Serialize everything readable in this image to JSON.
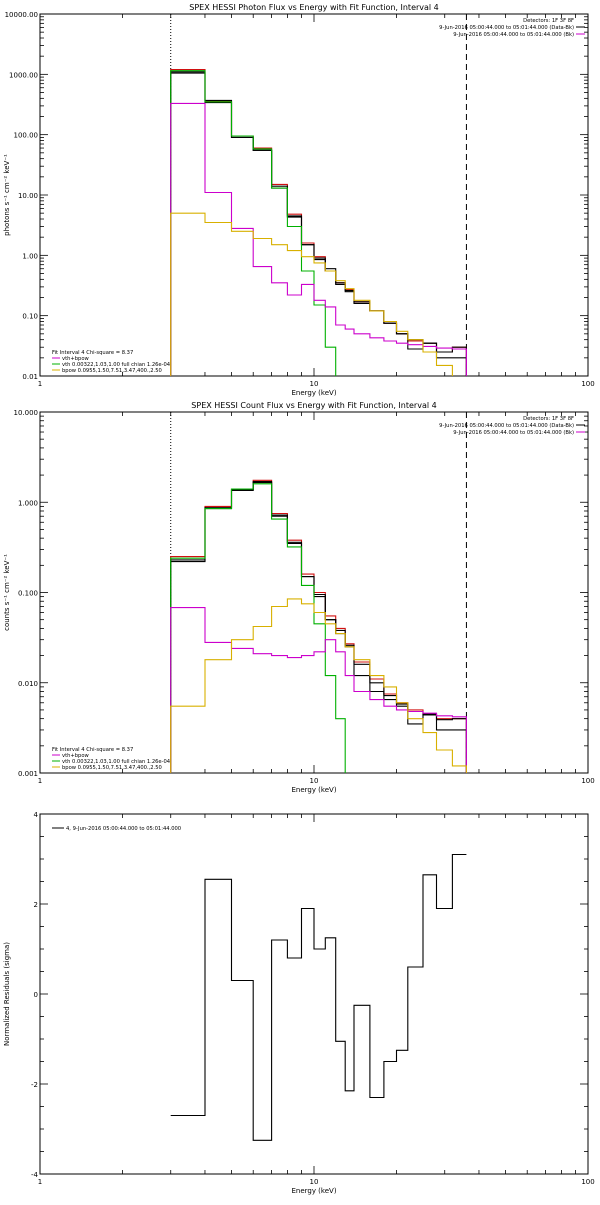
{
  "colors": {
    "data": "#000000",
    "bkg": "#d01010",
    "model": "#00b000",
    "vth": "#00b000",
    "bpow": "#d8b000",
    "vthbpow": "#cc00cc"
  },
  "chart_data": [
    {
      "type": "line",
      "title": "SPEX HESSI Photon Flux vs Energy with Fit Function, Interval 4",
      "xlabel": "Energy (keV)",
      "ylabel": "photons s⁻¹ cm⁻² keV⁻¹",
      "xscale": "log",
      "yscale": "log",
      "xlim": [
        1,
        100
      ],
      "ylim": [
        0.01,
        10000
      ],
      "x_ticks": [
        "1",
        "10",
        "100"
      ],
      "y_ticks": [
        "0.01",
        "0.10",
        "1.00",
        "10.00",
        "100.00",
        "1000.00",
        "10000.00"
      ],
      "vlines": [
        {
          "x": 3.0,
          "style": "dotted"
        },
        {
          "x": 36.0,
          "style": "dashed"
        }
      ],
      "header": [
        "Detectors: 1F 3F 8F",
        "9-Jun-2016 05:00:44.000 to 05:01:44.000 (Data-Bk)",
        "9-Jun-2016 05:00:44.000 to 05:01:44.000 (Bk)"
      ],
      "legend": [
        "Fit Interval  4   Chi-square = 8.37",
        "vth+bpow",
        "vth 0.00322,1.03,1.00  full chian 1.26e-04",
        "bpow 0.0955,1.50,7.51,3.47,400.,2.50"
      ],
      "edges": [
        3.0,
        4.0,
        5.0,
        6.0,
        7.0,
        8.0,
        9.0,
        10.0,
        11.0,
        12.0,
        13.0,
        14.0,
        16.0,
        18.0,
        20.0,
        22.0,
        25.0,
        28.0,
        32.0,
        36.0
      ],
      "series": [
        {
          "key": "data",
          "values": [
            1100,
            370,
            90,
            55,
            14,
            4.5,
            1.5,
            0.9,
            0.6,
            0.35,
            0.25,
            0.17,
            0.12,
            0.075,
            0.05,
            0.028,
            0.035,
            0.02,
            0.02
          ]
        },
        {
          "key": "model",
          "values": [
            1200,
            360,
            95,
            60,
            15,
            4.8,
            1.6,
            0.95,
            0.55,
            0.35,
            0.27,
            0.17,
            0.12,
            0.075,
            0.05,
            0.038,
            0.035,
            0.025,
            0.03
          ]
        },
        {
          "key": "vthbpow",
          "values": [
            1050,
            340,
            90,
            55,
            13,
            4.3,
            1.5,
            0.85,
            0.55,
            0.33,
            0.26,
            0.16,
            0.12,
            0.075,
            0.05,
            0.04,
            0.035,
            0.025,
            0.03
          ]
        },
        {
          "key": "vth",
          "values": [
            1150,
            350,
            95,
            58,
            13,
            3.0,
            0.55,
            0.15,
            0.03,
            0.006
          ]
        },
        {
          "key": "vthbpow_alt",
          "values": [
            330,
            11,
            2.8,
            0.65,
            0.35,
            0.22,
            0.33,
            0.18,
            0.14,
            0.07,
            0.06,
            0.05,
            0.043,
            0.038,
            0.035,
            0.033,
            0.031,
            0.029,
            0.028
          ]
        },
        {
          "key": "bpow",
          "values": [
            5,
            3.5,
            2.5,
            1.9,
            1.5,
            1.2,
            0.95,
            0.75,
            0.55,
            0.38,
            0.28,
            0.18,
            0.12,
            0.08,
            0.055,
            0.04,
            0.025,
            0.015,
            0.009
          ]
        }
      ]
    },
    {
      "type": "line",
      "title": "SPEX HESSI Count Flux vs Energy with Fit Function, Interval 4",
      "xlabel": "Energy (keV)",
      "ylabel": "counts s⁻¹ cm⁻² keV⁻¹",
      "xscale": "log",
      "yscale": "log",
      "xlim": [
        1,
        100
      ],
      "ylim": [
        0.001,
        10
      ],
      "x_ticks": [
        "1",
        "10",
        "100"
      ],
      "y_ticks": [
        "0.001",
        "0.010",
        "0.100",
        "1.000",
        "10.000"
      ],
      "vlines": [
        {
          "x": 3.0,
          "style": "dotted"
        },
        {
          "x": 36.0,
          "style": "dashed"
        }
      ],
      "header": [
        "Detectors: 1F 3F 8F",
        "9-Jun-2016 05:00:44.000 to 05:01:44.000 (Data-Bk)",
        "9-Jun-2016 05:00:44.000 to 05:01:44.000 (Bk)"
      ],
      "legend": [
        "Fit Interval  4   Chi-square = 8.37",
        "vth+bpow",
        "vth 0.00322,1.03,1.00  full chian 1.26e-04",
        "bpow 0.0955,1.50,7.51,3.47,400.,2.50"
      ],
      "edges": [
        3.0,
        4.0,
        5.0,
        6.0,
        7.0,
        8.0,
        9.0,
        10.0,
        11.0,
        12.0,
        13.0,
        14.0,
        16.0,
        18.0,
        20.0,
        22.0,
        25.0,
        28.0,
        32.0,
        36.0
      ],
      "series": [
        {
          "key": "data",
          "values": [
            0.22,
            0.85,
            1.35,
            1.65,
            0.7,
            0.35,
            0.15,
            0.09,
            0.05,
            0.035,
            0.025,
            0.012,
            0.008,
            0.0065,
            0.0055,
            0.0035,
            0.0045,
            0.003,
            0.003
          ]
        },
        {
          "key": "model",
          "values": [
            0.25,
            0.9,
            1.4,
            1.75,
            0.75,
            0.38,
            0.16,
            0.1,
            0.055,
            0.04,
            0.027,
            0.017,
            0.011,
            0.0075,
            0.006,
            0.005,
            0.0045,
            0.004,
            0.004
          ]
        },
        {
          "key": "vthbpow",
          "values": [
            0.23,
            0.87,
            1.38,
            1.7,
            0.72,
            0.36,
            0.15,
            0.095,
            0.05,
            0.038,
            0.026,
            0.016,
            0.01,
            0.0072,
            0.0058,
            0.0048,
            0.0044,
            0.0039,
            0.004
          ]
        },
        {
          "key": "vth",
          "values": [
            0.24,
            0.85,
            1.4,
            1.6,
            0.65,
            0.32,
            0.12,
            0.045,
            0.012,
            0.004,
            0.0009
          ]
        },
        {
          "key": "vthbpow_alt",
          "values": [
            0.068,
            0.028,
            0.024,
            0.021,
            0.02,
            0.019,
            0.02,
            0.022,
            0.03,
            0.022,
            0.012,
            0.008,
            0.0065,
            0.0055,
            0.005,
            0.0048,
            0.0046,
            0.0043,
            0.0042
          ]
        },
        {
          "key": "bpow",
          "values": [
            0.0055,
            0.018,
            0.03,
            0.042,
            0.07,
            0.085,
            0.075,
            0.06,
            0.045,
            0.035,
            0.025,
            0.018,
            0.012,
            0.009,
            0.006,
            0.004,
            0.0028,
            0.0018,
            0.0012
          ]
        }
      ]
    },
    {
      "type": "line",
      "title": "",
      "xlabel": "Energy (keV)",
      "ylabel": "Normalized Residuals (sigma)",
      "xscale": "log",
      "yscale": "linear",
      "xlim": [
        1,
        100
      ],
      "ylim": [
        -4,
        4
      ],
      "x_ticks": [
        "1",
        "10",
        "100"
      ],
      "y_ticks": [
        "-4",
        "-2",
        "0",
        "2",
        "4"
      ],
      "legend": [
        "4,  9-Jun-2016 05:00:44.000 to 05:01:44.000"
      ],
      "edges": [
        3.0,
        4.0,
        5.0,
        6.0,
        7.0,
        8.0,
        9.0,
        10.0,
        11.0,
        12.0,
        13.0,
        14.0,
        16.0,
        18.0,
        20.0,
        22.0,
        25.0,
        28.0,
        32.0,
        36.0
      ],
      "series": [
        {
          "key": "data",
          "values": [
            -2.7,
            2.55,
            0.3,
            -3.25,
            1.2,
            0.8,
            1.9,
            1.0,
            1.25,
            -1.05,
            -2.15,
            -0.25,
            -2.3,
            -1.5,
            -1.25,
            0.6,
            2.65,
            1.9,
            3.1
          ]
        }
      ]
    }
  ]
}
